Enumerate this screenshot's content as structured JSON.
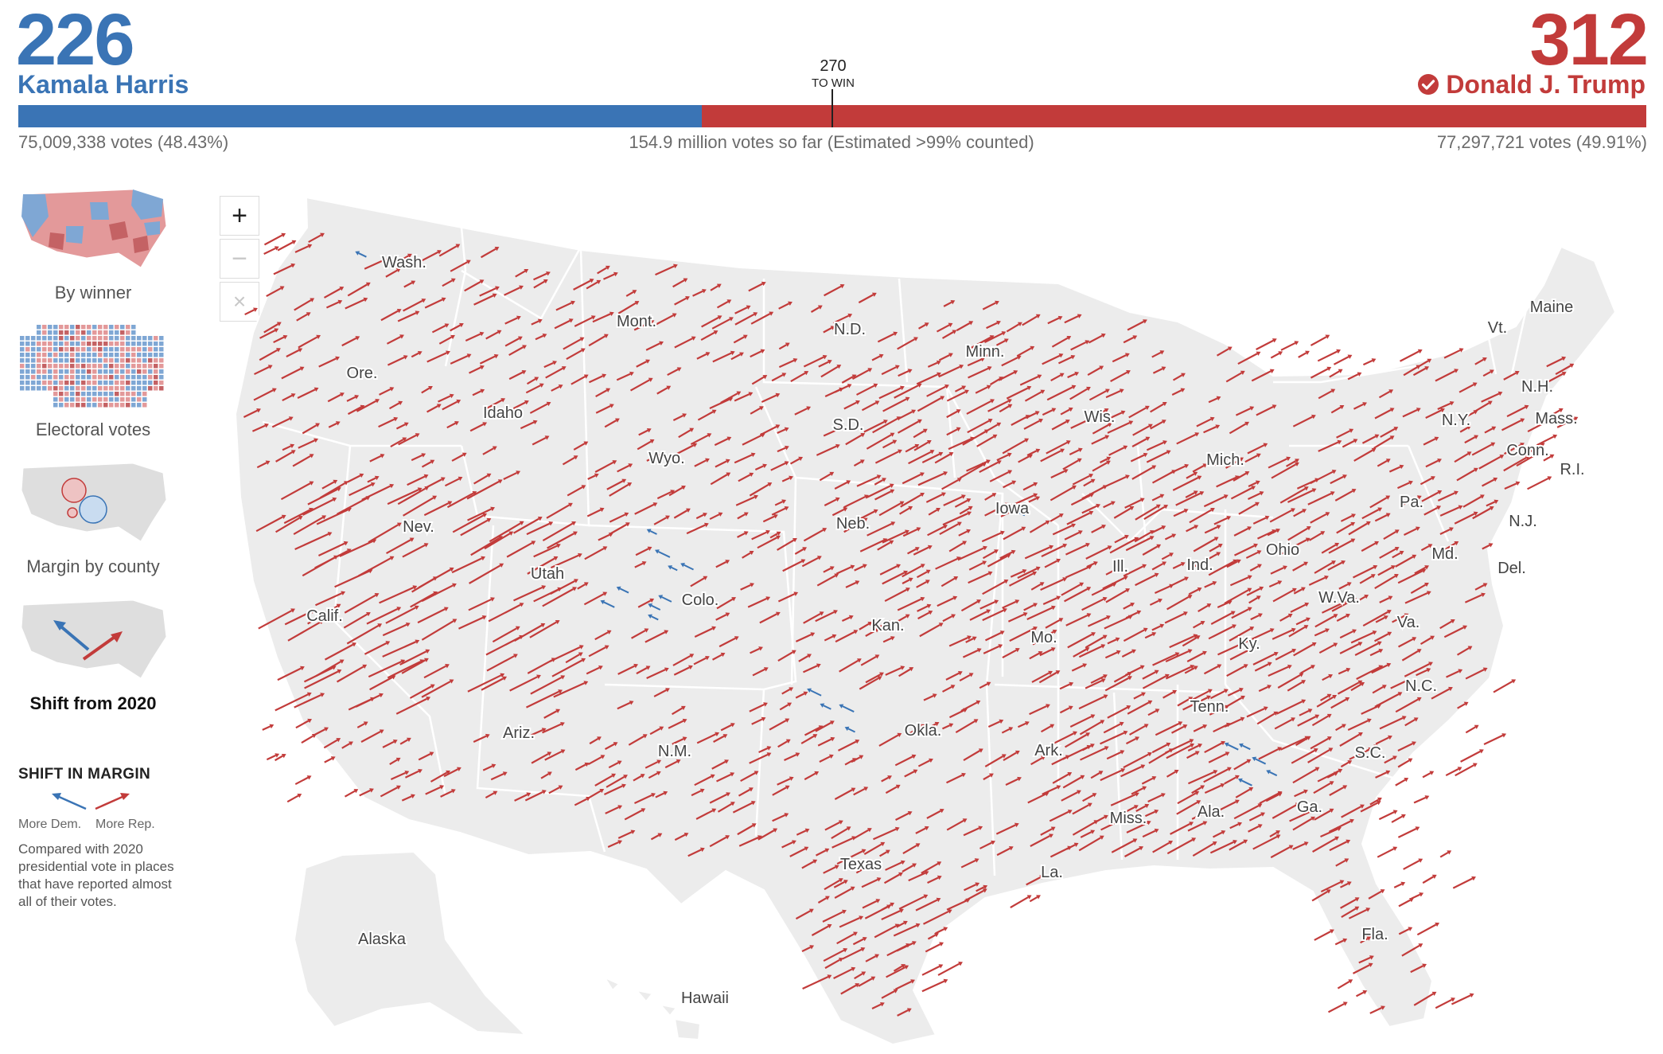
{
  "header": {
    "dem": {
      "ev": "226",
      "name": "Kamala Harris",
      "votes": "75,009,338 votes (48.43%)"
    },
    "rep": {
      "ev": "312",
      "name": "Donald J. Trump",
      "votes": "77,297,721 votes (49.91%)",
      "winner_icon": "check-circle-icon"
    },
    "threshold": {
      "value": "270",
      "label": "TO WIN"
    },
    "total": "154.9 million votes so far (Estimated >99% counted)",
    "bar_split_fraction": 0.42,
    "threshold_fraction": 0.5
  },
  "colors": {
    "dem": "#3a74b5",
    "rep": "#c23b3a",
    "land": "#ececec",
    "border": "#ffffff"
  },
  "zoom_controls": {
    "zoom_in": "+",
    "zoom_out": "−",
    "reset": "×"
  },
  "views": [
    {
      "label": "By winner",
      "active": false
    },
    {
      "label": "Electoral votes",
      "active": false
    },
    {
      "label": "Margin by county",
      "active": false
    },
    {
      "label": "Shift from 2020",
      "active": true
    }
  ],
  "legend": {
    "title": "SHIFT IN MARGIN",
    "dem_label": "More Dem.",
    "rep_label": "More Rep.",
    "note": "Compared with 2020 presidential vote in places that have reported almost all of their votes."
  },
  "state_labels": [
    "Wash.",
    "Ore.",
    "Calif.",
    "Nev.",
    "Idaho",
    "Mont.",
    "Wyo.",
    "Utah",
    "Colo.",
    "Ariz.",
    "N.M.",
    "N.D.",
    "S.D.",
    "Neb.",
    "Kan.",
    "Okla.",
    "Texas",
    "Minn.",
    "Iowa",
    "Mo.",
    "Ark.",
    "La.",
    "Wis.",
    "Ill.",
    "Mich.",
    "Ind.",
    "Ohio",
    "Ky.",
    "Tenn.",
    "Miss.",
    "Ala.",
    "Ga.",
    "Fla.",
    "S.C.",
    "N.C.",
    "Va.",
    "W.Va.",
    "Pa.",
    "N.Y.",
    "Vt.",
    "N.H.",
    "Maine",
    "Mass.",
    "Conn.",
    "R.I.",
    "N.J.",
    "Del.",
    "Md.",
    "Alaska",
    "Hawaii"
  ]
}
